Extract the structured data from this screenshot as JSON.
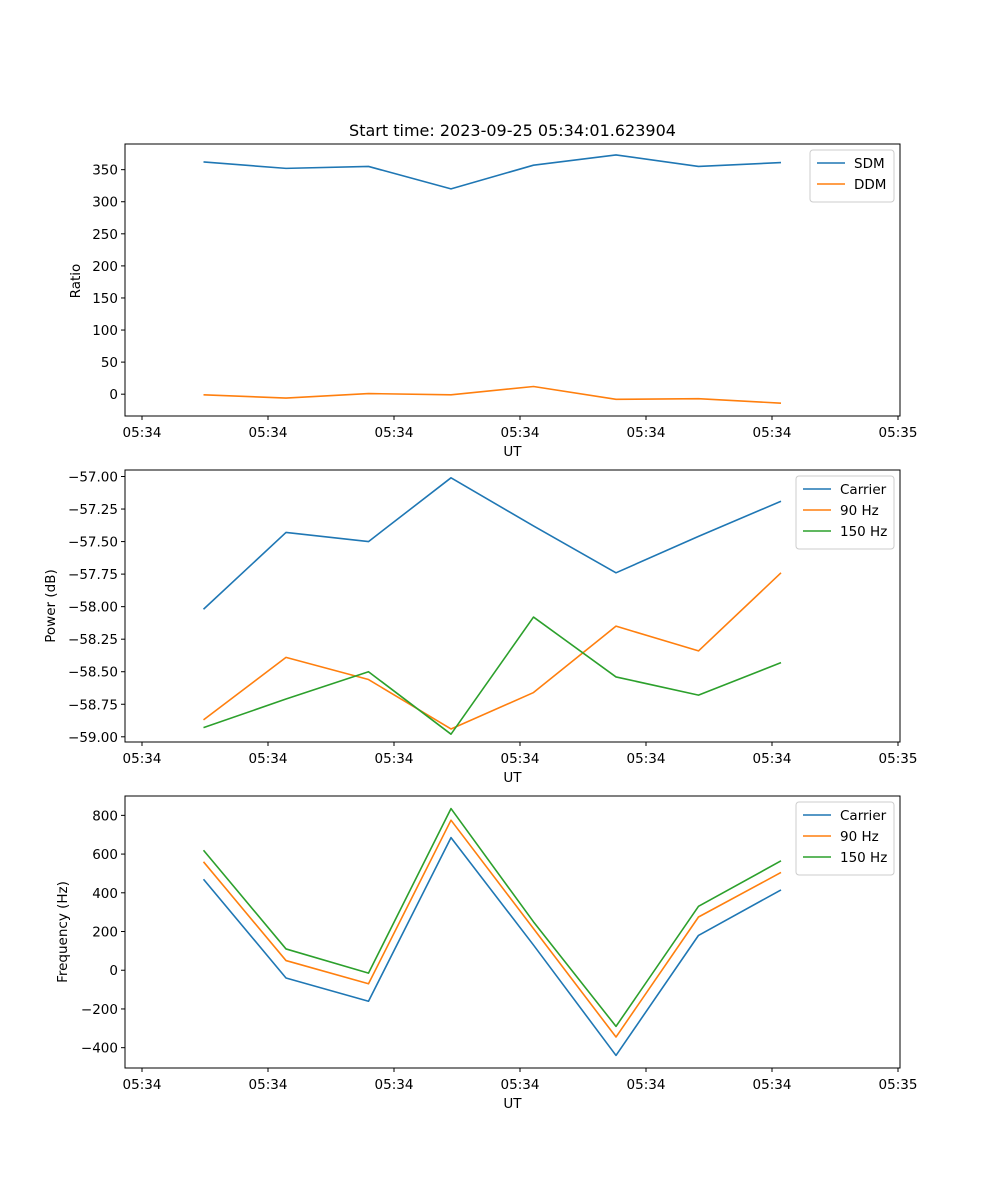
{
  "chart_data": [
    {
      "type": "line",
      "title": "Start time: 2023-09-25 05:34:01.623904",
      "xlabel": "UT",
      "ylabel": "Ratio",
      "ylim": [
        -34,
        390
      ],
      "yticks": [
        0,
        50,
        100,
        150,
        200,
        250,
        300,
        350
      ],
      "xticks": [
        "05:34",
        "05:34",
        "05:34",
        "05:34",
        "05:34",
        "05:34",
        "05:35"
      ],
      "legend_position": "top-right",
      "series": [
        {
          "name": "SDM",
          "color": "#1f77b4",
          "values": [
            362,
            352,
            355,
            320,
            357,
            373,
            355,
            361
          ]
        },
        {
          "name": "DDM",
          "color": "#ff7f0e",
          "values": [
            -1,
            -6,
            1,
            -1,
            12,
            -8,
            -7,
            -14
          ]
        }
      ]
    },
    {
      "type": "line",
      "title": "",
      "xlabel": "UT",
      "ylabel": "Power (dB)",
      "ylim": [
        -59.04,
        -56.95
      ],
      "yticks": [
        "-59.00",
        "-58.75",
        "-58.50",
        "-58.25",
        "-58.00",
        "-57.75",
        "-57.50",
        "-57.25",
        "-57.00"
      ],
      "xticks": [
        "05:34",
        "05:34",
        "05:34",
        "05:34",
        "05:34",
        "05:34",
        "05:35"
      ],
      "legend_position": "top-right",
      "series": [
        {
          "name": "Carrier",
          "color": "#1f77b4",
          "values": [
            -58.02,
            -57.43,
            -57.5,
            -57.01,
            -57.38,
            -57.74,
            -57.46,
            -57.19
          ]
        },
        {
          "name": "90 Hz",
          "color": "#ff7f0e",
          "values": [
            -58.87,
            -58.39,
            -58.56,
            -58.94,
            -58.66,
            -58.15,
            -58.34,
            -57.74
          ]
        },
        {
          "name": "150 Hz",
          "color": "#2ca02c",
          "values": [
            -58.93,
            -58.71,
            -58.5,
            -58.98,
            -58.08,
            -58.54,
            -58.68,
            -58.43
          ]
        }
      ]
    },
    {
      "type": "line",
      "title": "",
      "xlabel": "UT",
      "ylabel": "Frequency (Hz)",
      "ylim": [
        -505,
        900
      ],
      "yticks": [
        -400,
        -200,
        0,
        200,
        400,
        600,
        800
      ],
      "xticks": [
        "05:34",
        "05:34",
        "05:34",
        "05:34",
        "05:34",
        "05:34",
        "05:35"
      ],
      "legend_position": "top-right",
      "series": [
        {
          "name": "Carrier",
          "color": "#1f77b4",
          "values": [
            470,
            -40,
            -160,
            685,
            130,
            -440,
            180,
            415
          ]
        },
        {
          "name": "90 Hz",
          "color": "#ff7f0e",
          "values": [
            560,
            50,
            -70,
            775,
            215,
            -345,
            275,
            505
          ]
        },
        {
          "name": "150 Hz",
          "color": "#2ca02c",
          "values": [
            620,
            110,
            -15,
            835,
            250,
            -290,
            330,
            565
          ]
        }
      ]
    }
  ]
}
